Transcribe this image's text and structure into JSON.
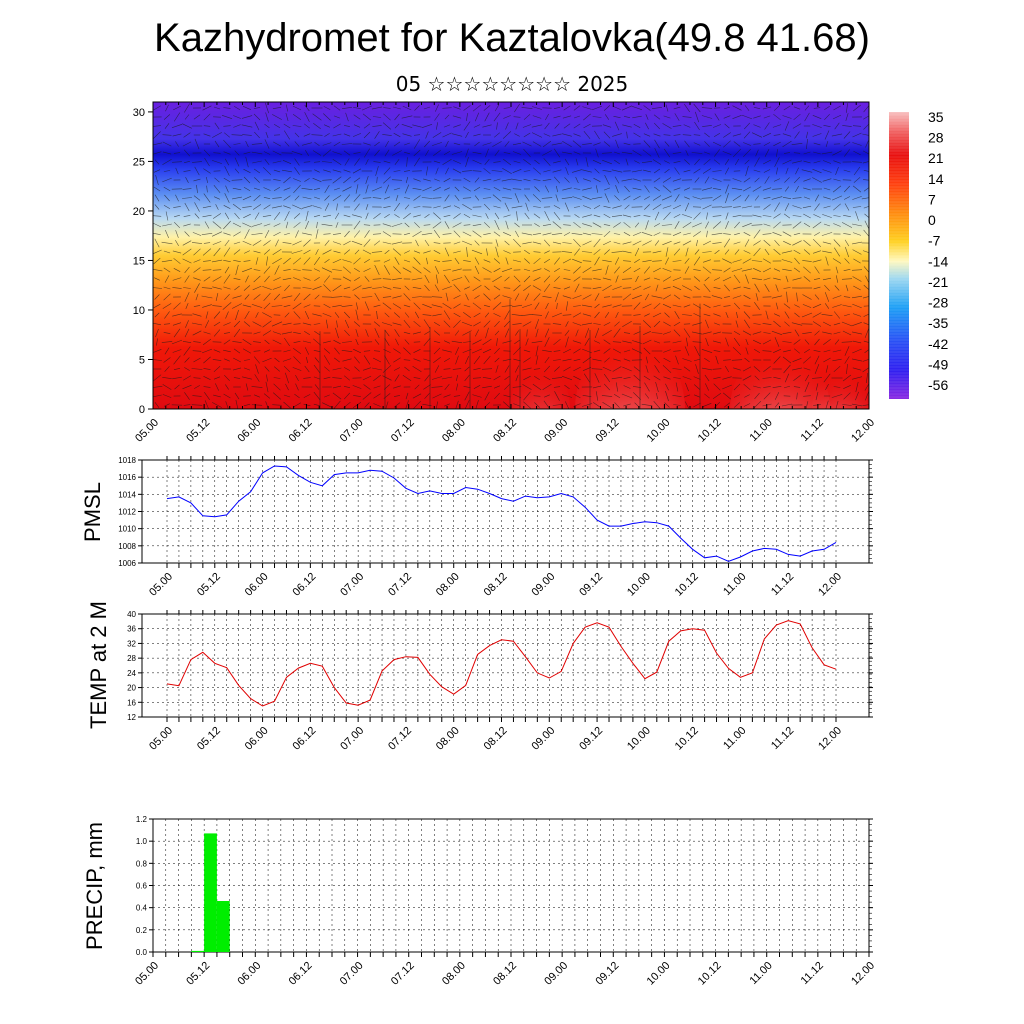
{
  "title": "Kazhydromet for Kaztalovka(49.8 41.68)",
  "subtitle": "05 ☆☆☆☆☆☆☆☆ 2025",
  "chart_data": [
    {
      "type": "heatmap",
      "name": "temperature-wind-profile",
      "x_tick_labels": [
        "05.00",
        "05.12",
        "06.00",
        "06.12",
        "07.00",
        "07.12",
        "08.00",
        "08.12",
        "09.00",
        "09.12",
        "10.00",
        "10.12",
        "11.00",
        "11.12",
        "12.00"
      ],
      "y_ticks": [
        0,
        5,
        10,
        15,
        20,
        25,
        30
      ],
      "ylim": [
        0,
        31
      ],
      "colorbar_labels": [
        "35",
        "28",
        "21",
        "14",
        "7",
        "0",
        "-7",
        "-14",
        "-21",
        "-28",
        "-35",
        "-42",
        "-49",
        "-56"
      ],
      "colorbar_range": [
        -63,
        42
      ]
    },
    {
      "type": "line",
      "name": "pmsl",
      "ylabel": "PMSL",
      "x_tick_labels": [
        "05.00",
        "05.12",
        "06.00",
        "06.12",
        "07.00",
        "07.12",
        "08.00",
        "08.12",
        "09.00",
        "09.12",
        "10.00",
        "10.12",
        "11.00",
        "11.12",
        "12.00"
      ],
      "y_ticks": [
        1006,
        1008,
        1010,
        1012,
        1014,
        1016,
        1018
      ],
      "ylim": [
        1006,
        1018
      ],
      "color": "#0000ff",
      "values": [
        1013.5,
        1013.7,
        1013.0,
        1011.5,
        1011.4,
        1011.6,
        1013.2,
        1014.3,
        1016.5,
        1017.3,
        1017.2,
        1016.2,
        1015.4,
        1015.0,
        1016.3,
        1016.5,
        1016.5,
        1016.8,
        1016.7,
        1015.9,
        1014.7,
        1014.1,
        1014.4,
        1014.1,
        1014.1,
        1014.8,
        1014.6,
        1014.1,
        1013.5,
        1013.2,
        1013.8,
        1013.6,
        1013.7,
        1014.1,
        1013.7,
        1012.5,
        1011.0,
        1010.3,
        1010.3,
        1010.6,
        1010.8,
        1010.7,
        1010.3,
        1008.9,
        1007.6,
        1006.6,
        1006.8,
        1006.2,
        1006.7,
        1007.4,
        1007.7,
        1007.6,
        1007.0,
        1006.8,
        1007.4,
        1007.6,
        1008.4
      ]
    },
    {
      "type": "line",
      "name": "temp-2m",
      "ylabel": "TEMP at 2 M",
      "x_tick_labels": [
        "05.00",
        "05.12",
        "06.00",
        "06.12",
        "07.00",
        "07.12",
        "08.00",
        "08.12",
        "09.00",
        "09.12",
        "10.00",
        "10.12",
        "11.00",
        "11.12",
        "12.00"
      ],
      "y_ticks": [
        12,
        16,
        20,
        24,
        28,
        32,
        36,
        40
      ],
      "ylim": [
        12,
        40
      ],
      "color": "#e00000",
      "values": [
        21.0,
        20.5,
        27.6,
        29.6,
        26.6,
        25.4,
        20.6,
        17.0,
        15.0,
        16.3,
        22.8,
        25.3,
        26.6,
        25.8,
        20.0,
        15.8,
        15.2,
        16.6,
        24.5,
        27.6,
        28.4,
        28.2,
        23.6,
        20.2,
        18.2,
        20.6,
        29.0,
        31.4,
        33.0,
        32.6,
        28.4,
        24.0,
        22.6,
        24.4,
        32.0,
        36.4,
        37.6,
        36.4,
        31.2,
        26.6,
        22.4,
        24.2,
        32.6,
        35.4,
        36.0,
        35.6,
        29.4,
        25.2,
        22.8,
        24.0,
        33.2,
        37.0,
        38.2,
        37.3,
        30.8,
        26.2,
        25.0
      ]
    },
    {
      "type": "bar",
      "name": "precip",
      "ylabel": "PRECIP, mm",
      "x_tick_labels": [
        "05.00",
        "05.12",
        "06.00",
        "06.12",
        "07.00",
        "07.12",
        "08.00",
        "08.12",
        "09.00",
        "09.12",
        "10.00",
        "10.12",
        "11.00",
        "11.12",
        "12.00"
      ],
      "y_ticks": [
        "0.0",
        "0.2",
        "0.4",
        "0.6",
        "0.8",
        "1.0",
        "1.2"
      ],
      "ylim": [
        0,
        1.2
      ],
      "color": "#00ee00",
      "bar_hours": [
        9,
        12,
        15
      ],
      "bar_values": [
        0.01,
        1.07,
        0.46
      ],
      "bar_width_hours": 3
    }
  ]
}
